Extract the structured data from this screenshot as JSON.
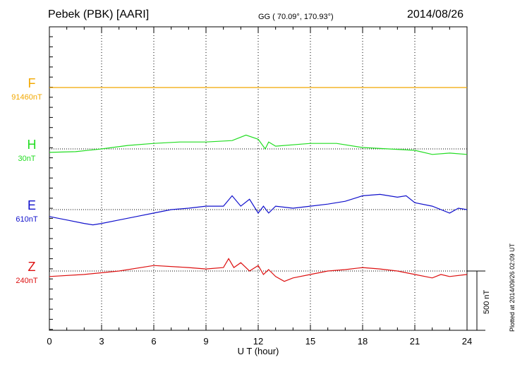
{
  "header": {
    "title": "Pebek (PBK)  [AARI]",
    "coords": "GG ( 70.09°, 170.93°)",
    "date": "2014/08/26"
  },
  "footer": {
    "plotted": "Plotted at 2014/09/26 02:09 UT",
    "scale_label": "500 nT"
  },
  "colors": {
    "F": "#f2a800",
    "H": "#22dd22",
    "E": "#1010cc",
    "Z": "#dd1010"
  },
  "chart_data": {
    "type": "line",
    "xlabel": "U T (hour)",
    "xlim": [
      0,
      24
    ],
    "x_ticks": [
      "0",
      "3",
      "6",
      "9",
      "12",
      "15",
      "18",
      "21",
      "24"
    ],
    "grid": true,
    "scale_bar_nT": 500,
    "channels": [
      {
        "name": "F",
        "base_label": "91460nT",
        "x": [
          0,
          3,
          6,
          9,
          12,
          15,
          18,
          21,
          24
        ],
        "values": [
          0,
          0,
          0,
          0,
          0,
          0,
          0,
          0,
          0
        ]
      },
      {
        "name": "H",
        "base_label": "30nT",
        "x": [
          0,
          1.5,
          3,
          4.5,
          6,
          7.5,
          9,
          10.5,
          11.3,
          12,
          12.4,
          12.6,
          13,
          15,
          16.5,
          18,
          19.5,
          21,
          22,
          23,
          24
        ],
        "values": [
          -5,
          -4,
          0,
          5,
          8,
          10,
          10,
          12,
          20,
          14,
          0,
          10,
          4,
          8,
          8,
          2,
          0,
          -2,
          -8,
          -6,
          -8
        ]
      },
      {
        "name": "E",
        "base_label": "610nT",
        "x": [
          0,
          1,
          2,
          2.5,
          3,
          4,
          5,
          6,
          7,
          8,
          9,
          10,
          10.5,
          11,
          11.5,
          12,
          12.3,
          12.6,
          13,
          14,
          15,
          16,
          17,
          18,
          19,
          20,
          20.5,
          21,
          22,
          23,
          23.5,
          24
        ],
        "values": [
          -10,
          -15,
          -20,
          -22,
          -20,
          -15,
          -10,
          -5,
          0,
          2,
          5,
          5,
          20,
          5,
          15,
          -5,
          5,
          -5,
          5,
          2,
          5,
          8,
          12,
          20,
          22,
          18,
          20,
          10,
          5,
          -5,
          2,
          0
        ]
      },
      {
        "name": "Z",
        "base_label": "240nT",
        "x": [
          0,
          2,
          4,
          6,
          8,
          9,
          10,
          10.3,
          10.6,
          11,
          11.5,
          12,
          12.3,
          12.6,
          13,
          13.5,
          14,
          15,
          16,
          17,
          18,
          19,
          20,
          21,
          22,
          22.5,
          23,
          24
        ],
        "values": [
          -8,
          -5,
          0,
          8,
          5,
          3,
          5,
          18,
          5,
          12,
          0,
          8,
          -5,
          2,
          -8,
          -15,
          -10,
          -5,
          0,
          2,
          5,
          3,
          0,
          -5,
          -10,
          -5,
          -8,
          -5
        ]
      }
    ]
  }
}
